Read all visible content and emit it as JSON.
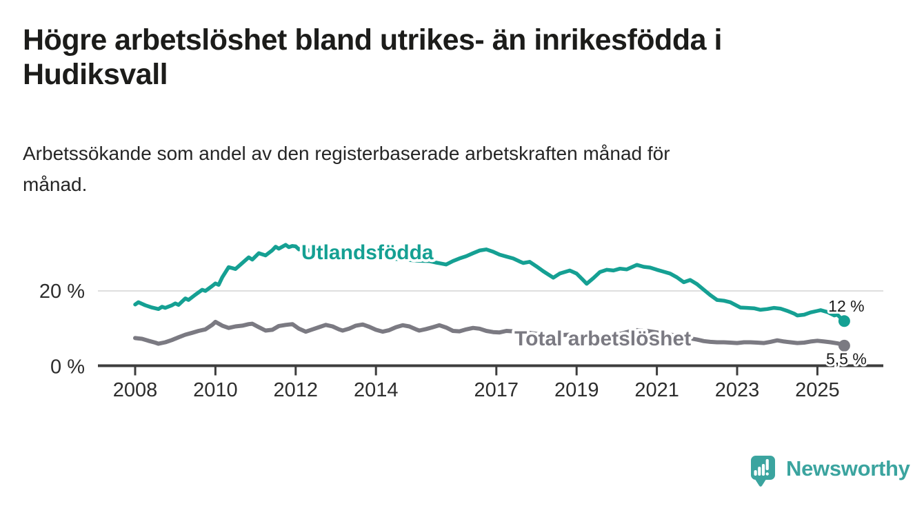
{
  "header": {
    "title": "Högre arbetslöshet bland utrikes- än inrikesfödda i Hudiksvall",
    "title_lines": [
      "Högre arbetslöshet bland utrikes- än inrikesfödda i",
      "Hudiksvall"
    ],
    "subtitle": "Arbetssökande som andel av den registerbaserade arbetskraften månad för månad.",
    "subtitle_lines": [
      "Arbetssökande som andel av den registerbaserade arbetskraften månad för",
      "månad."
    ]
  },
  "chart_data": {
    "type": "line",
    "unit": "%",
    "grid": "single-horizontal-gridline-at-20",
    "legend_position": "inline-series-labels",
    "x_range": [
      2008,
      2025.75
    ],
    "y_range": [
      0,
      34
    ],
    "x_ticks": [
      2008,
      2010,
      2012,
      2014,
      2017,
      2019,
      2021,
      2023,
      2025
    ],
    "y_ticks": [
      {
        "value": 20,
        "label": "20 %"
      },
      {
        "value": 0,
        "label": "0 %"
      }
    ],
    "series": [
      {
        "name": "Utlandsfödda",
        "color": "#15a093",
        "end_label": "12 %",
        "end_label_position": "above",
        "end_value": 12,
        "label_anchor": {
          "year": 2012.14,
          "value": 28.4
        },
        "points": [
          [
            2008.0,
            16.4
          ],
          [
            2008.08,
            17.0
          ],
          [
            2008.25,
            16.2
          ],
          [
            2008.42,
            15.6
          ],
          [
            2008.58,
            15.2
          ],
          [
            2008.67,
            15.8
          ],
          [
            2008.75,
            15.5
          ],
          [
            2008.92,
            16.2
          ],
          [
            2009.0,
            16.7
          ],
          [
            2009.08,
            16.3
          ],
          [
            2009.25,
            18.0
          ],
          [
            2009.33,
            17.6
          ],
          [
            2009.5,
            19.0
          ],
          [
            2009.67,
            20.3
          ],
          [
            2009.75,
            20.0
          ],
          [
            2009.92,
            21.3
          ],
          [
            2010.0,
            22.0
          ],
          [
            2010.08,
            21.6
          ],
          [
            2010.17,
            23.6
          ],
          [
            2010.33,
            26.3
          ],
          [
            2010.5,
            25.8
          ],
          [
            2010.67,
            27.4
          ],
          [
            2010.83,
            28.9
          ],
          [
            2010.92,
            28.3
          ],
          [
            2011.08,
            30.0
          ],
          [
            2011.25,
            29.4
          ],
          [
            2011.42,
            30.8
          ],
          [
            2011.5,
            31.7
          ],
          [
            2011.58,
            31.2
          ],
          [
            2011.75,
            32.2
          ],
          [
            2011.83,
            31.6
          ],
          [
            2011.92,
            31.9
          ],
          [
            2012.0,
            31.8
          ],
          [
            2012.08,
            31.0
          ],
          [
            2012.17,
            31.3
          ],
          [
            2012.33,
            30.7
          ],
          [
            2012.58,
            30.3
          ],
          [
            2012.83,
            30.0
          ],
          [
            2013.08,
            29.8
          ],
          [
            2013.33,
            29.5
          ],
          [
            2013.58,
            29.4
          ],
          [
            2013.83,
            29.1
          ],
          [
            2014.08,
            28.9
          ],
          [
            2014.33,
            28.6
          ],
          [
            2014.58,
            28.4
          ],
          [
            2014.83,
            28.2
          ],
          [
            2015.08,
            28.0
          ],
          [
            2015.33,
            27.9
          ],
          [
            2015.5,
            27.5
          ],
          [
            2015.75,
            27.0
          ],
          [
            2015.92,
            27.9
          ],
          [
            2016.08,
            28.6
          ],
          [
            2016.25,
            29.2
          ],
          [
            2016.42,
            30.0
          ],
          [
            2016.58,
            30.7
          ],
          [
            2016.75,
            31.0
          ],
          [
            2016.92,
            30.4
          ],
          [
            2017.08,
            29.6
          ],
          [
            2017.25,
            29.1
          ],
          [
            2017.42,
            28.6
          ],
          [
            2017.58,
            27.8
          ],
          [
            2017.67,
            27.4
          ],
          [
            2017.83,
            27.7
          ],
          [
            2018.0,
            26.5
          ],
          [
            2018.17,
            25.2
          ],
          [
            2018.42,
            23.5
          ],
          [
            2018.58,
            24.6
          ],
          [
            2018.83,
            25.4
          ],
          [
            2019.0,
            24.6
          ],
          [
            2019.17,
            22.8
          ],
          [
            2019.25,
            21.9
          ],
          [
            2019.42,
            23.4
          ],
          [
            2019.58,
            25.0
          ],
          [
            2019.75,
            25.6
          ],
          [
            2019.92,
            25.4
          ],
          [
            2020.08,
            25.9
          ],
          [
            2020.25,
            25.7
          ],
          [
            2020.5,
            26.9
          ],
          [
            2020.67,
            26.4
          ],
          [
            2020.83,
            26.2
          ],
          [
            2021.0,
            25.6
          ],
          [
            2021.17,
            25.1
          ],
          [
            2021.33,
            24.6
          ],
          [
            2021.5,
            23.6
          ],
          [
            2021.67,
            22.3
          ],
          [
            2021.83,
            22.9
          ],
          [
            2022.0,
            21.8
          ],
          [
            2022.17,
            20.3
          ],
          [
            2022.33,
            18.9
          ],
          [
            2022.5,
            17.6
          ],
          [
            2022.67,
            17.4
          ],
          [
            2022.83,
            17.0
          ],
          [
            2022.92,
            16.5
          ],
          [
            2023.08,
            15.6
          ],
          [
            2023.25,
            15.5
          ],
          [
            2023.42,
            15.4
          ],
          [
            2023.58,
            15.0
          ],
          [
            2023.75,
            15.2
          ],
          [
            2023.92,
            15.5
          ],
          [
            2024.08,
            15.3
          ],
          [
            2024.25,
            14.7
          ],
          [
            2024.42,
            14.0
          ],
          [
            2024.5,
            13.5
          ],
          [
            2024.67,
            13.7
          ],
          [
            2024.83,
            14.3
          ],
          [
            2025.0,
            14.7
          ],
          [
            2025.08,
            14.9
          ],
          [
            2025.25,
            14.4
          ],
          [
            2025.42,
            13.5
          ],
          [
            2025.5,
            13.7
          ],
          [
            2025.58,
            12.8
          ],
          [
            2025.67,
            12.0
          ]
        ]
      },
      {
        "name": "Total arbetslöshet",
        "color": "#7b7a82",
        "end_label": "5,5 %",
        "end_label_position": "below",
        "end_value": 5.5,
        "label_anchor": {
          "year": 2017.45,
          "value": 5.6
        },
        "points": [
          [
            2008.0,
            7.5
          ],
          [
            2008.17,
            7.3
          ],
          [
            2008.33,
            6.8
          ],
          [
            2008.5,
            6.3
          ],
          [
            2008.58,
            6.0
          ],
          [
            2008.75,
            6.4
          ],
          [
            2008.92,
            7.0
          ],
          [
            2009.08,
            7.7
          ],
          [
            2009.25,
            8.4
          ],
          [
            2009.42,
            8.9
          ],
          [
            2009.58,
            9.4
          ],
          [
            2009.75,
            9.8
          ],
          [
            2009.92,
            11.0
          ],
          [
            2010.0,
            11.8
          ],
          [
            2010.17,
            10.8
          ],
          [
            2010.33,
            10.2
          ],
          [
            2010.5,
            10.6
          ],
          [
            2010.67,
            10.8
          ],
          [
            2010.83,
            11.2
          ],
          [
            2010.92,
            11.3
          ],
          [
            2011.08,
            10.4
          ],
          [
            2011.25,
            9.5
          ],
          [
            2011.42,
            9.7
          ],
          [
            2011.58,
            10.7
          ],
          [
            2011.75,
            11.0
          ],
          [
            2011.92,
            11.2
          ],
          [
            2012.08,
            10.0
          ],
          [
            2012.25,
            9.2
          ],
          [
            2012.42,
            9.8
          ],
          [
            2012.58,
            10.4
          ],
          [
            2012.75,
            11.0
          ],
          [
            2012.92,
            10.6
          ],
          [
            2013.08,
            9.8
          ],
          [
            2013.17,
            9.5
          ],
          [
            2013.33,
            10.0
          ],
          [
            2013.5,
            10.8
          ],
          [
            2013.67,
            11.1
          ],
          [
            2013.83,
            10.5
          ],
          [
            2014.0,
            9.7
          ],
          [
            2014.17,
            9.2
          ],
          [
            2014.33,
            9.6
          ],
          [
            2014.5,
            10.4
          ],
          [
            2014.67,
            10.9
          ],
          [
            2014.83,
            10.6
          ],
          [
            2015.0,
            9.8
          ],
          [
            2015.08,
            9.5
          ],
          [
            2015.25,
            9.9
          ],
          [
            2015.42,
            10.4
          ],
          [
            2015.58,
            10.9
          ],
          [
            2015.75,
            10.3
          ],
          [
            2015.92,
            9.4
          ],
          [
            2016.08,
            9.3
          ],
          [
            2016.25,
            9.8
          ],
          [
            2016.42,
            10.2
          ],
          [
            2016.58,
            10.0
          ],
          [
            2016.75,
            9.4
          ],
          [
            2016.92,
            9.1
          ],
          [
            2017.08,
            9.0
          ],
          [
            2017.25,
            9.4
          ],
          [
            2017.42,
            9.3
          ],
          [
            2017.58,
            9.2
          ],
          [
            2017.83,
            8.9
          ],
          [
            2018.08,
            8.5
          ],
          [
            2018.33,
            8.3
          ],
          [
            2018.58,
            8.3
          ],
          [
            2018.83,
            8.4
          ],
          [
            2019.08,
            8.1
          ],
          [
            2019.33,
            7.9
          ],
          [
            2019.58,
            8.1
          ],
          [
            2019.83,
            8.3
          ],
          [
            2020.08,
            8.6
          ],
          [
            2020.33,
            9.3
          ],
          [
            2020.5,
            9.6
          ],
          [
            2020.75,
            9.4
          ],
          [
            2021.0,
            9.0
          ],
          [
            2021.25,
            8.6
          ],
          [
            2021.5,
            8.1
          ],
          [
            2021.75,
            7.6
          ],
          [
            2022.0,
            7.1
          ],
          [
            2022.17,
            6.7
          ],
          [
            2022.33,
            6.5
          ],
          [
            2022.5,
            6.4
          ],
          [
            2022.67,
            6.4
          ],
          [
            2022.83,
            6.3
          ],
          [
            2023.0,
            6.2
          ],
          [
            2023.17,
            6.4
          ],
          [
            2023.33,
            6.4
          ],
          [
            2023.5,
            6.3
          ],
          [
            2023.67,
            6.2
          ],
          [
            2023.83,
            6.5
          ],
          [
            2024.0,
            6.9
          ],
          [
            2024.17,
            6.6
          ],
          [
            2024.33,
            6.4
          ],
          [
            2024.5,
            6.2
          ],
          [
            2024.67,
            6.3
          ],
          [
            2024.83,
            6.6
          ],
          [
            2025.0,
            6.8
          ],
          [
            2025.17,
            6.6
          ],
          [
            2025.33,
            6.4
          ],
          [
            2025.5,
            6.1
          ],
          [
            2025.58,
            5.9
          ],
          [
            2025.67,
            5.5
          ]
        ]
      }
    ]
  },
  "colors": {
    "background": "#ffffff",
    "title_text": "#1c1c1a",
    "subtitle_text": "#252525",
    "axis_line": "#3d3d3d",
    "gridline": "#dedede",
    "tick_label": "#2d2d2d",
    "value_label": "#1a1a1a",
    "series_teal": "#15a093",
    "series_gray": "#7b7a82",
    "logo_teal": "#3ba49f"
  },
  "footer": {
    "brand": "Newsworthy"
  }
}
